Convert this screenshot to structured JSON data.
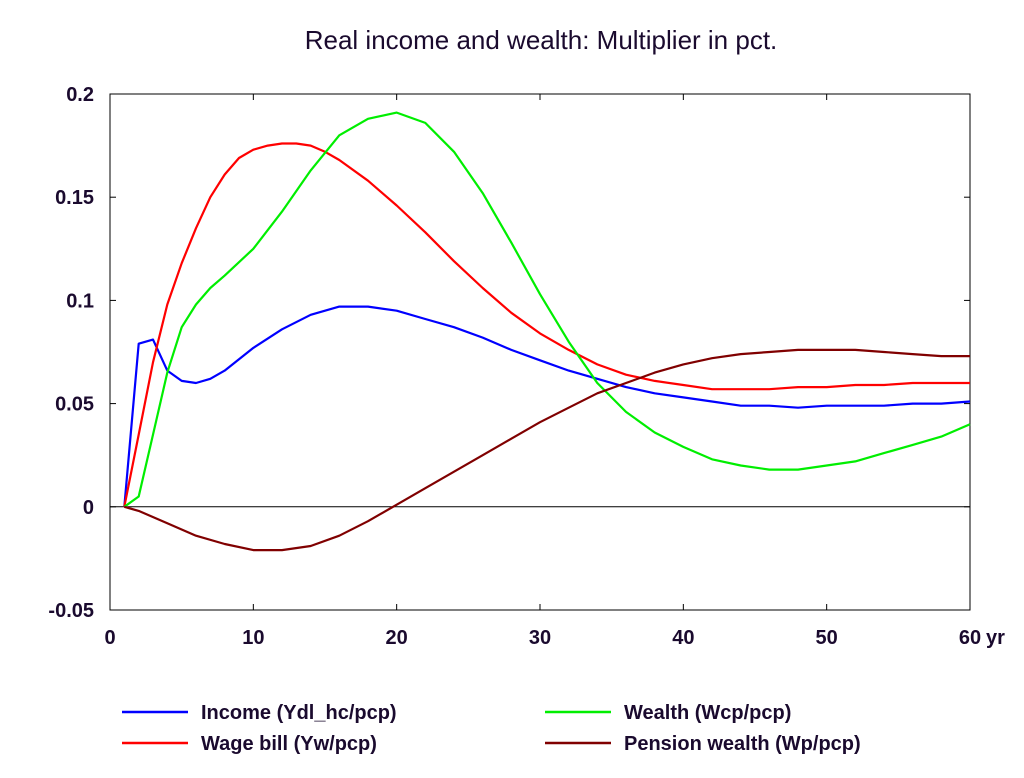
{
  "chart_data": {
    "type": "line",
    "title": "Real income and wealth: Multiplier in pct.",
    "xlabel": "",
    "ylabel": "",
    "x_unit": "yr",
    "xlim": [
      0,
      60
    ],
    "ylim": [
      -0.05,
      0.2
    ],
    "xticks": [
      0,
      10,
      20,
      30,
      40,
      50,
      60
    ],
    "yticks": [
      -0.05,
      0,
      0.05,
      0.1,
      0.15,
      0.2
    ],
    "ytick_labels": [
      "-0.05",
      "0",
      "0.05",
      "0.1",
      "0.15",
      "0.2"
    ],
    "zero_line": true,
    "grid": false,
    "legend_position": "bottom",
    "series": [
      {
        "name": "Income (Ydl_hc/pcp)",
        "color": "#0000ff",
        "x": [
          1,
          2,
          3,
          4,
          5,
          6,
          7,
          8,
          10,
          12,
          14,
          16,
          17,
          18,
          20,
          22,
          24,
          26,
          28,
          30,
          32,
          34,
          36,
          38,
          40,
          42,
          44,
          46,
          48,
          50,
          52,
          54,
          56,
          58,
          60
        ],
        "y": [
          0,
          0.079,
          0.081,
          0.066,
          0.061,
          0.06,
          0.062,
          0.066,
          0.077,
          0.086,
          0.093,
          0.097,
          0.097,
          0.097,
          0.095,
          0.091,
          0.087,
          0.082,
          0.076,
          0.071,
          0.066,
          0.062,
          0.058,
          0.055,
          0.053,
          0.051,
          0.049,
          0.049,
          0.048,
          0.049,
          0.049,
          0.049,
          0.05,
          0.05,
          0.051
        ]
      },
      {
        "name": "Wage bill (Yw/pcp)",
        "color": "#ff0000",
        "x": [
          1,
          2,
          3,
          4,
          5,
          6,
          7,
          8,
          9,
          10,
          11,
          12,
          13,
          14,
          15,
          16,
          18,
          20,
          22,
          24,
          26,
          28,
          30,
          32,
          34,
          36,
          38,
          40,
          42,
          44,
          46,
          48,
          50,
          52,
          54,
          56,
          58,
          60
        ],
        "y": [
          0,
          0.035,
          0.07,
          0.098,
          0.118,
          0.135,
          0.15,
          0.161,
          0.169,
          0.173,
          0.175,
          0.176,
          0.176,
          0.175,
          0.172,
          0.168,
          0.158,
          0.146,
          0.133,
          0.119,
          0.106,
          0.094,
          0.084,
          0.076,
          0.069,
          0.064,
          0.061,
          0.059,
          0.057,
          0.057,
          0.057,
          0.058,
          0.058,
          0.059,
          0.059,
          0.06,
          0.06,
          0.06
        ]
      },
      {
        "name": "Wealth (Wcp/pcp)",
        "color": "#00ee00",
        "x": [
          1,
          2,
          3,
          4,
          5,
          6,
          7,
          8,
          10,
          12,
          14,
          16,
          18,
          20,
          22,
          24,
          26,
          28,
          30,
          32,
          34,
          36,
          38,
          40,
          42,
          44,
          46,
          48,
          50,
          52,
          54,
          56,
          58,
          60
        ],
        "y": [
          0,
          0.005,
          0.035,
          0.065,
          0.087,
          0.098,
          0.106,
          0.112,
          0.125,
          0.143,
          0.163,
          0.18,
          0.188,
          0.191,
          0.186,
          0.172,
          0.152,
          0.128,
          0.103,
          0.08,
          0.06,
          0.046,
          0.036,
          0.029,
          0.023,
          0.02,
          0.018,
          0.018,
          0.02,
          0.022,
          0.026,
          0.03,
          0.034,
          0.04
        ]
      },
      {
        "name": "Pension wealth (Wp/pcp)",
        "color": "#800000",
        "x": [
          1,
          2,
          4,
          6,
          8,
          10,
          12,
          14,
          16,
          18,
          20,
          22,
          24,
          26,
          28,
          30,
          32,
          34,
          36,
          38,
          40,
          42,
          44,
          46,
          48,
          50,
          52,
          54,
          56,
          58,
          60
        ],
        "y": [
          0,
          -0.002,
          -0.008,
          -0.014,
          -0.018,
          -0.021,
          -0.021,
          -0.019,
          -0.014,
          -0.007,
          0.001,
          0.009,
          0.017,
          0.025,
          0.033,
          0.041,
          0.048,
          0.055,
          0.06,
          0.065,
          0.069,
          0.072,
          0.074,
          0.075,
          0.076,
          0.076,
          0.076,
          0.075,
          0.074,
          0.073,
          0.073
        ]
      }
    ]
  }
}
